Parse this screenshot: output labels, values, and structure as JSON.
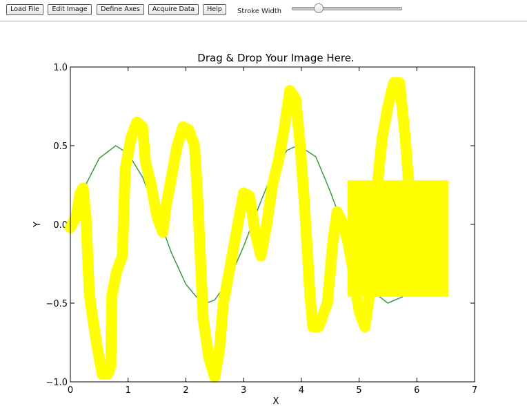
{
  "toolbar": {
    "buttons": {
      "load_file": "Load File",
      "edit_image": "Edit Image",
      "define_axes": "Define Axes",
      "acquire_data": "Acquire Data",
      "help": "Help"
    },
    "stroke_width_label": "Stroke Width",
    "stroke_width_fraction": 0.24
  },
  "chart_data": {
    "type": "line",
    "title": "Drag & Drop Your Image Here.",
    "xlabel": "X",
    "ylabel": "Y",
    "xlim": [
      0,
      7
    ],
    "ylim": [
      -1.0,
      1.0
    ],
    "x_ticks": [
      0,
      1,
      2,
      3,
      4,
      5,
      6,
      7
    ],
    "x_tick_labels": [
      "0",
      "1",
      "2",
      "3",
      "4",
      "5",
      "6",
      "7"
    ],
    "y_ticks": [
      -1.0,
      -0.5,
      0.0,
      0.5,
      1.0
    ],
    "y_tick_labels": [
      "−1.0",
      "−0.5",
      "0.0",
      "0.5",
      "1.0"
    ],
    "grid": false,
    "series": [
      {
        "color": "#3a9a3a",
        "x": [
          0,
          0.25,
          0.5,
          0.785,
          1.0,
          1.25,
          1.5,
          1.75,
          2.0,
          2.25,
          2.356,
          2.5,
          2.75,
          3.0,
          3.25,
          3.5,
          3.75,
          3.927,
          4.0,
          4.25,
          4.5,
          4.75,
          5.0,
          5.25,
          5.498,
          5.75,
          6.0
        ],
        "y": [
          0,
          0.24,
          0.42,
          0.5,
          0.45,
          0.3,
          0.07,
          -0.18,
          -0.38,
          -0.49,
          -0.5,
          -0.48,
          -0.35,
          -0.14,
          0.1,
          0.33,
          0.47,
          0.5,
          0.49,
          0.43,
          0.21,
          -0.04,
          -0.27,
          -0.43,
          -0.5,
          -0.46,
          -0.27
        ]
      }
    ],
    "overlay": {
      "color": "#ffff00",
      "stroke": [
        [
          0.0,
          -0.02
        ],
        [
          0.1,
          0.05
        ],
        [
          0.17,
          0.2
        ],
        [
          0.22,
          0.23
        ],
        [
          0.27,
          0.05
        ],
        [
          0.33,
          -0.45
        ],
        [
          0.45,
          -0.75
        ],
        [
          0.55,
          -0.95
        ],
        [
          0.65,
          -0.95
        ],
        [
          0.7,
          -0.9
        ],
        [
          0.72,
          -0.45
        ],
        [
          0.8,
          -0.3
        ],
        [
          0.9,
          -0.2
        ],
        [
          0.95,
          0.35
        ],
        [
          1.05,
          0.55
        ],
        [
          1.15,
          0.65
        ],
        [
          1.25,
          0.62
        ],
        [
          1.3,
          0.4
        ],
        [
          1.4,
          0.25
        ],
        [
          1.5,
          0.05
        ],
        [
          1.6,
          -0.05
        ],
        [
          1.65,
          0.1
        ],
        [
          1.75,
          0.3
        ],
        [
          1.85,
          0.5
        ],
        [
          1.95,
          0.62
        ],
        [
          2.05,
          0.6
        ],
        [
          2.15,
          0.5
        ],
        [
          2.2,
          0.2
        ],
        [
          2.25,
          -0.2
        ],
        [
          2.3,
          -0.6
        ],
        [
          2.4,
          -0.85
        ],
        [
          2.5,
          -0.97
        ],
        [
          2.58,
          -0.8
        ],
        [
          2.65,
          -0.5
        ],
        [
          2.75,
          -0.3
        ],
        [
          2.9,
          0.0
        ],
        [
          3.0,
          0.2
        ],
        [
          3.1,
          0.18
        ],
        [
          3.2,
          -0.05
        ],
        [
          3.3,
          -0.2
        ],
        [
          3.4,
          0.0
        ],
        [
          3.5,
          0.25
        ],
        [
          3.6,
          0.4
        ],
        [
          3.7,
          0.6
        ],
        [
          3.8,
          0.85
        ],
        [
          3.9,
          0.8
        ],
        [
          3.98,
          0.5
        ],
        [
          4.05,
          0.15
        ],
        [
          4.1,
          -0.15
        ],
        [
          4.15,
          -0.45
        ],
        [
          4.2,
          -0.65
        ],
        [
          4.3,
          -0.65
        ],
        [
          4.45,
          -0.5
        ],
        [
          4.55,
          -0.1
        ],
        [
          4.62,
          0.08
        ],
        [
          4.7,
          0.02
        ],
        [
          4.8,
          -0.1
        ],
        [
          4.9,
          -0.3
        ],
        [
          5.0,
          -0.55
        ],
        [
          5.1,
          -0.65
        ],
        [
          5.2,
          -0.4
        ],
        [
          5.3,
          0.2
        ],
        [
          5.4,
          0.55
        ],
        [
          5.5,
          0.75
        ],
        [
          5.6,
          0.9
        ],
        [
          5.7,
          0.9
        ],
        [
          5.8,
          0.55
        ],
        [
          5.88,
          0.15
        ]
      ],
      "rect": {
        "x": [
          4.8,
          6.55
        ],
        "y": [
          -0.46,
          0.28
        ]
      }
    }
  }
}
